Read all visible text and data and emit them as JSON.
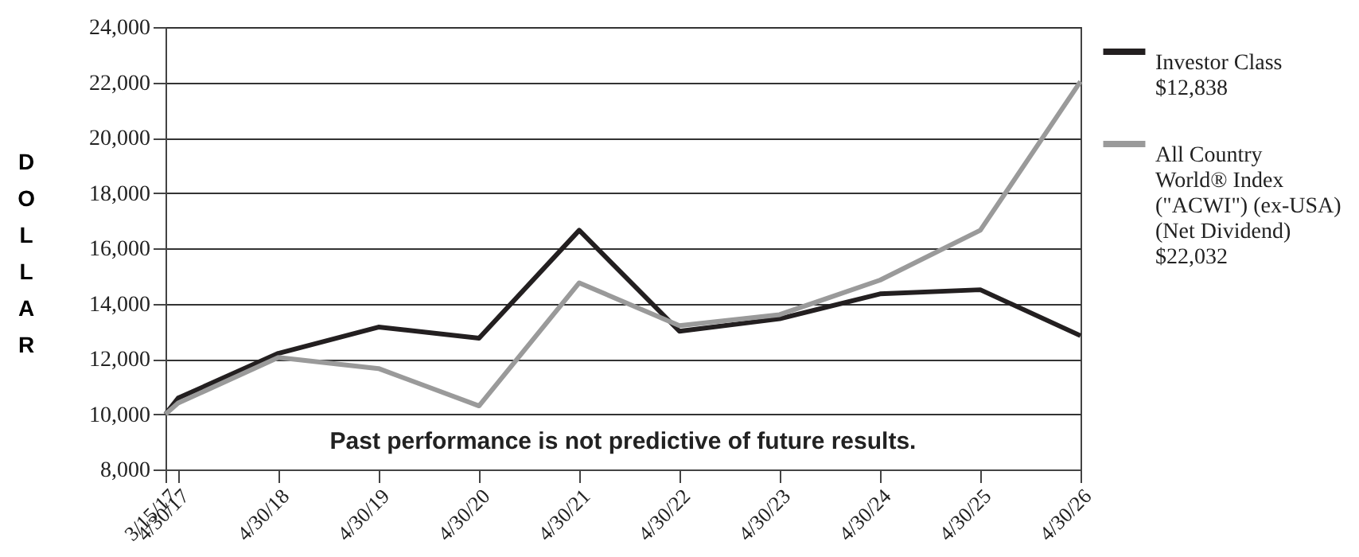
{
  "chart_data": {
    "type": "line",
    "ylabel": "DOLLAR",
    "x": [
      "2017-03-15",
      "2017-04-30",
      "2018-04-30",
      "2019-04-30",
      "2020-04-30",
      "2021-04-30",
      "2022-04-30",
      "2023-04-30",
      "2024-04-30",
      "2025-04-30",
      "2026-04-30"
    ],
    "series": [
      {
        "name": "Investor Class $12,838",
        "color": "#231f20",
        "values": [
          10000,
          10580,
          12200,
          13150,
          12750,
          16650,
          13000,
          13450,
          14350,
          14500,
          12838
        ]
      },
      {
        "name": "All Country World® Index (\"ACWI\") (ex-USA) (Net Dividend) $22,032",
        "color": "#9a9a9a",
        "values": [
          10000,
          10400,
          12050,
          11650,
          10300,
          14750,
          13200,
          13600,
          14850,
          16650,
          22032
        ]
      }
    ],
    "xlim": [
      "2017-03-15",
      "2026-04-30"
    ],
    "xticks": [
      {
        "value": "2017-03-15",
        "label": "3/15/17"
      },
      {
        "value": "2017-04-30",
        "label": "4/30/17"
      },
      {
        "value": "2018-04-30",
        "label": "4/30/18"
      },
      {
        "value": "2019-04-30",
        "label": "4/30/19"
      },
      {
        "value": "2020-04-30",
        "label": "4/30/20"
      },
      {
        "value": "2021-04-30",
        "label": "4/30/21"
      },
      {
        "value": "2022-04-30",
        "label": "4/30/22"
      },
      {
        "value": "2023-04-30",
        "label": "4/30/23"
      },
      {
        "value": "2024-04-30",
        "label": "4/30/24"
      },
      {
        "value": "2025-04-30",
        "label": "4/30/25"
      },
      {
        "value": "2026-04-30",
        "label": "4/30/26"
      }
    ],
    "ylim": [
      8000,
      24000
    ],
    "yticks": [
      {
        "value": 8000,
        "label": "8,000"
      },
      {
        "value": 10000,
        "label": "10,000"
      },
      {
        "value": 12000,
        "label": "12,000"
      },
      {
        "value": 14000,
        "label": "14,000"
      },
      {
        "value": 16000,
        "label": "16,000"
      },
      {
        "value": 18000,
        "label": "18,000"
      },
      {
        "value": 20000,
        "label": "20,000"
      },
      {
        "value": 22000,
        "label": "22,000"
      },
      {
        "value": 24000,
        "label": "24,000"
      }
    ],
    "grid": "y",
    "legend": "top right",
    "marker": "none",
    "line_style": "solid",
    "annotations": [
      "Past performance is not predictive of future results."
    ]
  }
}
